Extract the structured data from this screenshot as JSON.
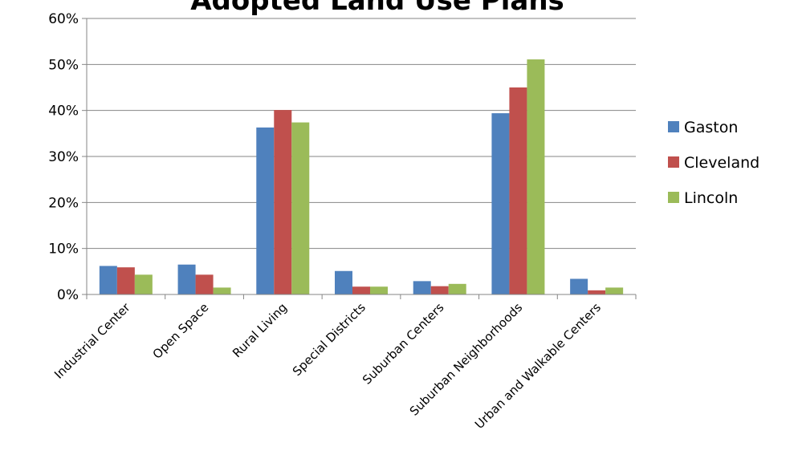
{
  "chart_data": {
    "type": "bar",
    "title": "Adopted Land Use Plans",
    "xlabel": "",
    "ylabel": "",
    "ylim": [
      0,
      0.6
    ],
    "yticks": [
      "0%",
      "10%",
      "20%",
      "30%",
      "40%",
      "50%",
      "60%"
    ],
    "grid": true,
    "legend": "right",
    "categories": [
      "Industrial Center",
      "Open Space",
      "Rural Living",
      "Special Districts",
      "Suburban Centers",
      "Suburban Neighborhoods",
      "Urban and Walkable Centers"
    ],
    "series": [
      {
        "name": "Gaston",
        "color": "#4F81BD",
        "values": [
          0.062,
          0.065,
          0.363,
          0.051,
          0.029,
          0.394,
          0.034
        ]
      },
      {
        "name": "Cleveland",
        "color": "#C0504D",
        "values": [
          0.059,
          0.043,
          0.401,
          0.017,
          0.018,
          0.45,
          0.009
        ]
      },
      {
        "name": "Lincoln",
        "color": "#9BBB59",
        "values": [
          0.043,
          0.015,
          0.374,
          0.017,
          0.023,
          0.511,
          0.015
        ]
      }
    ]
  }
}
